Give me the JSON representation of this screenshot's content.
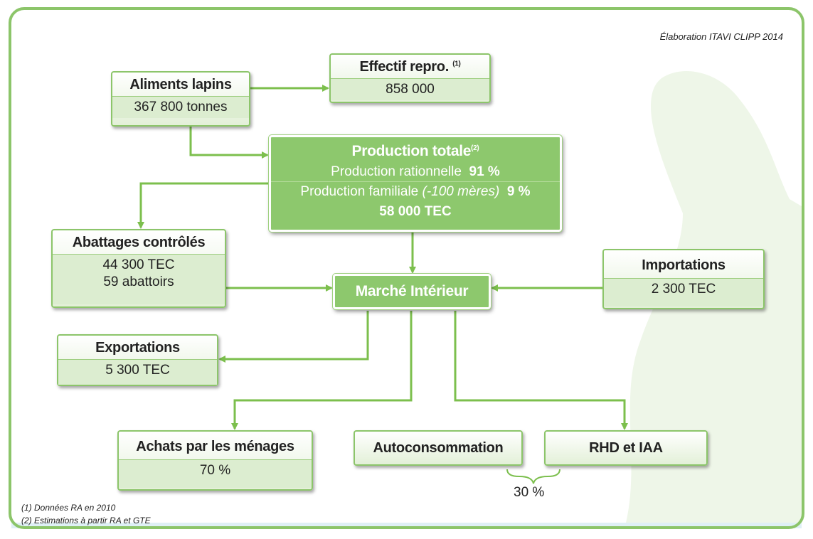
{
  "credit": "Élaboration ITAVI CLIPP 2014",
  "nodes": {
    "aliments": {
      "title": "Aliments lapins",
      "lines": [
        "367 800 tonnes"
      ]
    },
    "effectif": {
      "title": "Effectif repro.",
      "note": "(1)",
      "lines": [
        "858 000"
      ]
    },
    "production": {
      "title": "Production totale",
      "note": "(2)",
      "lines": [
        {
          "text": "Production rationnelle",
          "value": "91 %"
        },
        {
          "text": "Production familiale",
          "detail": "(-100 mères)",
          "value": "9 %"
        }
      ],
      "total": "58 000 TEC"
    },
    "abattages": {
      "title": "Abattages contrôlés",
      "lines": [
        "44 300 TEC",
        "59 abattoirs"
      ]
    },
    "marche": {
      "title": "Marché Intérieur"
    },
    "importations": {
      "title": "Importations",
      "lines": [
        "2 300 TEC"
      ]
    },
    "exportations": {
      "title": "Exportations",
      "lines": [
        "5 300 TEC"
      ]
    },
    "achats": {
      "title": "Achats par les ménages",
      "lines": [
        "70 %"
      ]
    },
    "autoconsommation": {
      "title": "Autoconsommation"
    },
    "rhd": {
      "title": "RHD et IAA"
    }
  },
  "combined_share": "30 %",
  "footnotes": [
    "(1) Données RA en 2010",
    "(2) Estimations à partir RA et GTE"
  ]
}
